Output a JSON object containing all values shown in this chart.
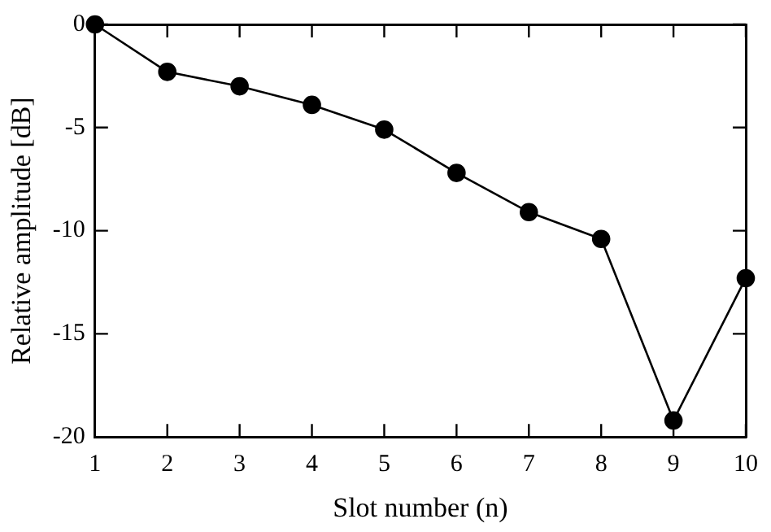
{
  "chart_data": {
    "type": "line",
    "xlabel": "Slot number (n)",
    "ylabel": "Relative amplitude [dB]",
    "x": [
      1,
      2,
      3,
      4,
      5,
      6,
      7,
      8,
      9,
      10
    ],
    "series": [
      {
        "color": "#000000",
        "values": [
          0,
          -2.3,
          -3.0,
          -3.9,
          -5.1,
          -7.2,
          -9.1,
          -10.4,
          -19.2,
          -12.3
        ]
      }
    ],
    "xlim": [
      1,
      10
    ],
    "xticks": [
      1,
      2,
      3,
      4,
      5,
      6,
      7,
      8,
      9,
      10
    ],
    "ylim": [
      -20,
      0
    ],
    "yticks": [
      -20,
      -15,
      -10,
      -5,
      0
    ],
    "grid": false,
    "legend": false,
    "marker": "circle",
    "line_style": "solid"
  }
}
